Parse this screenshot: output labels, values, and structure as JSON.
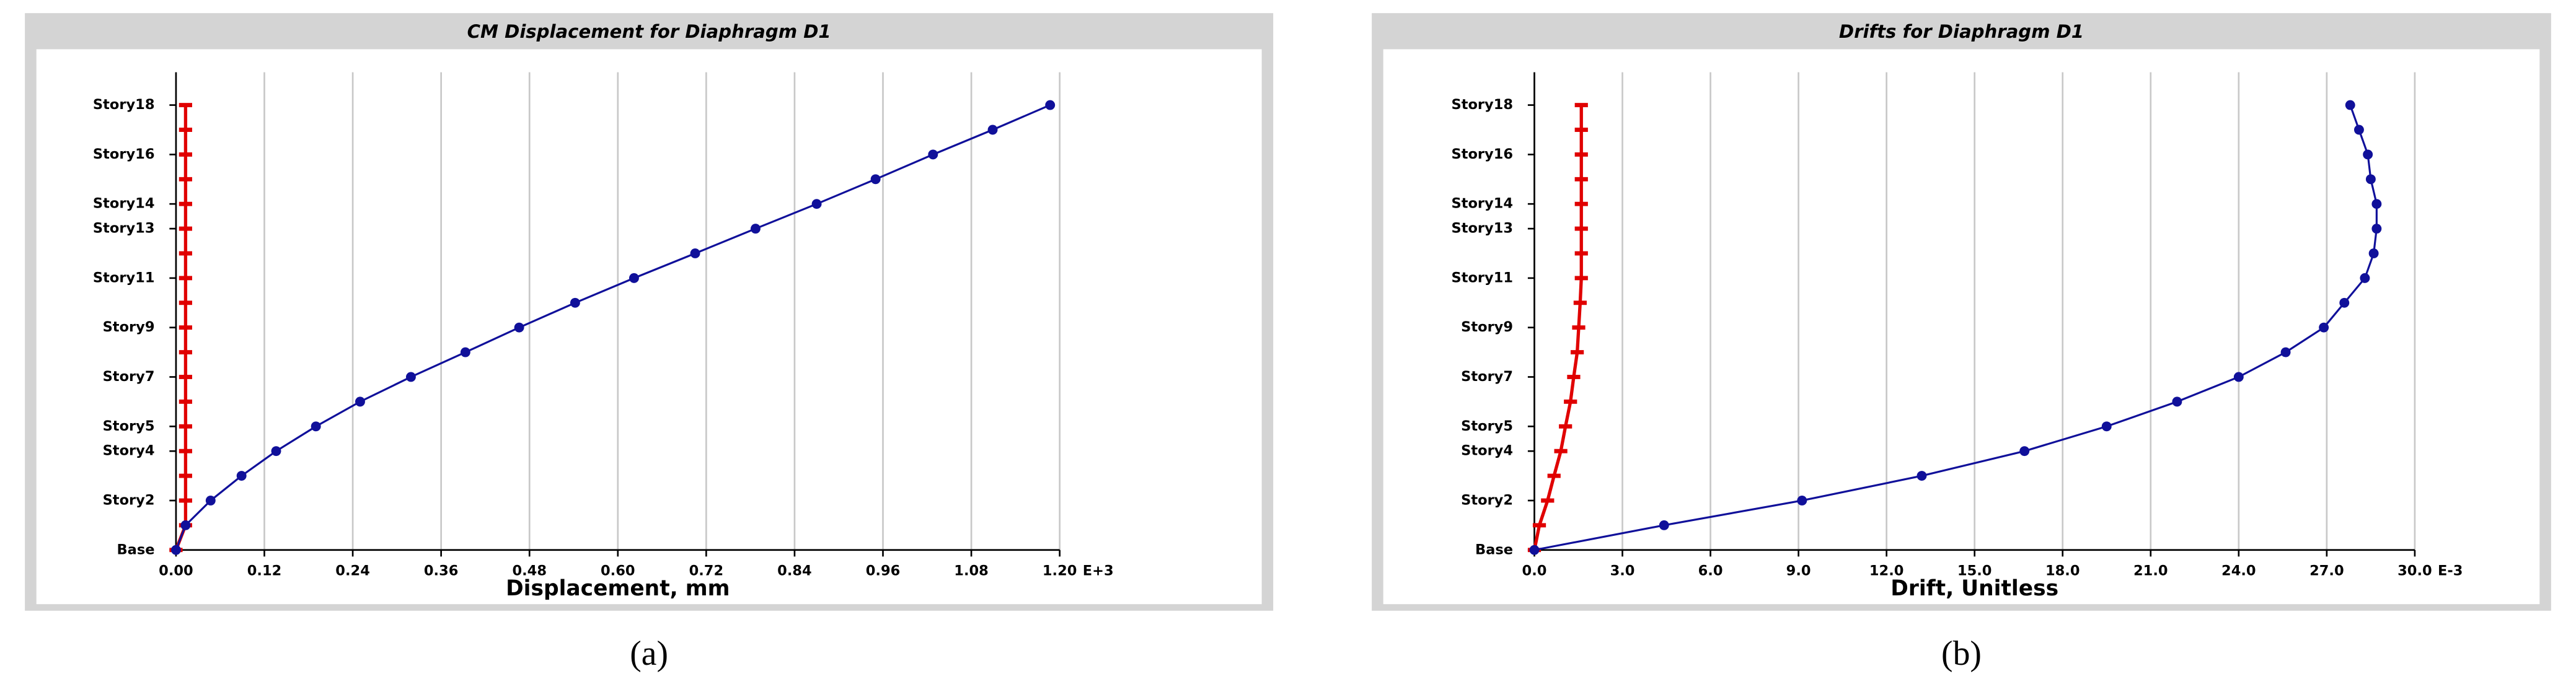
{
  "chart_data": [
    {
      "type": "line",
      "orientation": "horizontal",
      "title": "CM Displacement for Diaphragm D1",
      "xlabel": "Displacement, mm",
      "x_exponent": "E+3",
      "caption": "(a)",
      "categories": [
        "Base",
        null,
        "Story2",
        null,
        "Story4",
        "Story5",
        null,
        "Story7",
        null,
        "Story9",
        null,
        "Story11",
        null,
        "Story13",
        "Story14",
        null,
        "Story16",
        null,
        "Story18"
      ],
      "xlim": [
        0,
        1.2
      ],
      "xticks": [
        {
          "value": 0,
          "label": "0.00"
        },
        {
          "value": 0.12,
          "label": "0.12"
        },
        {
          "value": 0.24,
          "label": "0.24"
        },
        {
          "value": 0.36,
          "label": "0.36"
        },
        {
          "value": 0.48,
          "label": "0.48"
        },
        {
          "value": 0.6,
          "label": "0.60"
        },
        {
          "value": 0.72,
          "label": "0.72"
        },
        {
          "value": 0.84,
          "label": "0.84"
        },
        {
          "value": 0.96,
          "label": "0.96"
        },
        {
          "value": 1.08,
          "label": "1.08"
        },
        {
          "value": 1.2,
          "label": "1.20"
        }
      ],
      "grid": true,
      "series": [
        {
          "color": "#e00000",
          "marker": "dash",
          "values": [
            0,
            0.013,
            0.013,
            0.013,
            0.013,
            0.013,
            0.013,
            0.013,
            0.013,
            0.013,
            0.013,
            0.013,
            0.013,
            0.013,
            0.013,
            0.013,
            0.013,
            0.013,
            0.013
          ]
        },
        {
          "color": "#10109a",
          "marker": "circle",
          "values": [
            0,
            0.013,
            0.047,
            0.089,
            0.136,
            0.19,
            0.25,
            0.319,
            0.393,
            0.466,
            0.542,
            0.622,
            0.705,
            0.787,
            0.87,
            0.95,
            1.028,
            1.109,
            1.187
          ]
        }
      ]
    },
    {
      "type": "line",
      "orientation": "horizontal",
      "title": "Drifts for Diaphragm D1",
      "xlabel": "Drift, Unitless",
      "x_exponent": "E-3",
      "caption": "(b)",
      "categories": [
        "Base",
        null,
        "Story2",
        null,
        "Story4",
        "Story5",
        null,
        "Story7",
        null,
        "Story9",
        null,
        "Story11",
        null,
        "Story13",
        "Story14",
        null,
        "Story16",
        null,
        "Story18"
      ],
      "xlim": [
        0,
        30
      ],
      "xticks": [
        {
          "value": 0,
          "label": "0.0"
        },
        {
          "value": 3,
          "label": "3.0"
        },
        {
          "value": 6,
          "label": "6.0"
        },
        {
          "value": 9,
          "label": "9.0"
        },
        {
          "value": 12,
          "label": "12.0"
        },
        {
          "value": 15,
          "label": "15.0"
        },
        {
          "value": 18,
          "label": "18.0"
        },
        {
          "value": 21,
          "label": "21.0"
        },
        {
          "value": 24,
          "label": "24.0"
        },
        {
          "value": 27,
          "label": "27.0"
        },
        {
          "value": 30,
          "label": "30.0"
        }
      ],
      "grid": true,
      "series": [
        {
          "color": "#e00000",
          "marker": "dash",
          "values": [
            0,
            0.17,
            0.45,
            0.67,
            0.9,
            1.06,
            1.23,
            1.34,
            1.46,
            1.51,
            1.56,
            1.6,
            1.6,
            1.6,
            1.6,
            1.6,
            1.6,
            1.6,
            1.6
          ]
        },
        {
          "color": "#10109a",
          "marker": "circle",
          "values": [
            0,
            4.42,
            9.12,
            13.2,
            16.7,
            19.5,
            21.9,
            24.0,
            25.6,
            26.9,
            27.6,
            28.3,
            28.6,
            28.7,
            28.7,
            28.5,
            28.4,
            28.1,
            27.8
          ]
        }
      ]
    }
  ]
}
